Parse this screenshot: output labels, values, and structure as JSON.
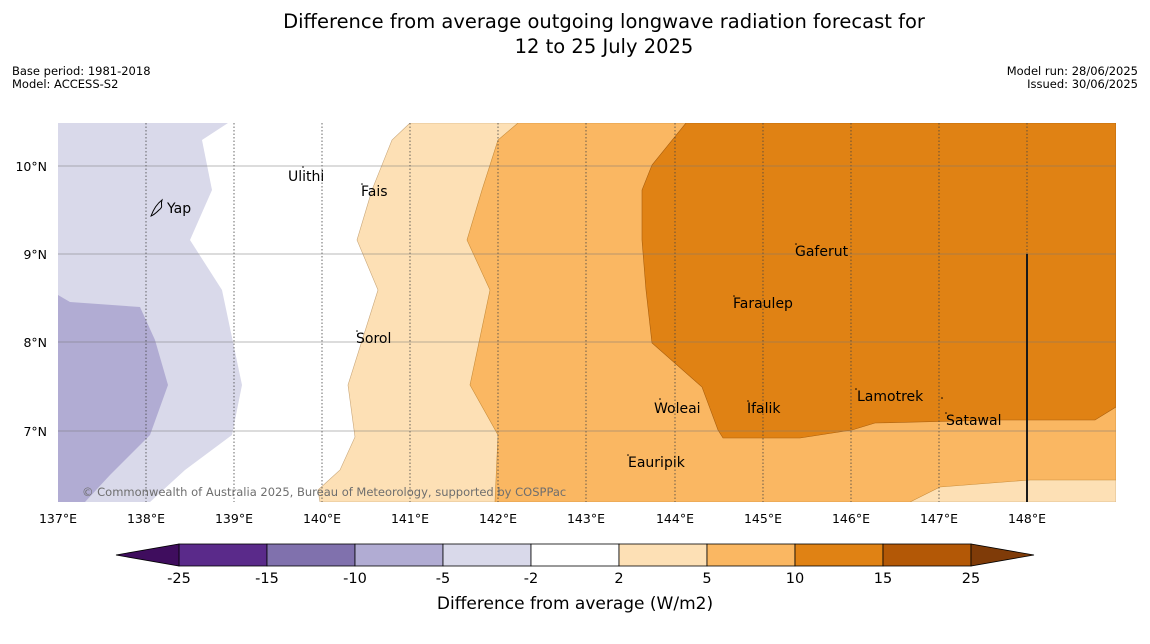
{
  "title_line1": "Difference from average outgoing longwave radiation forecast for",
  "title_line2": "12 to 25 July 2025",
  "base_period": "Base period: 1981-2018",
  "model": "Model: ACCESS-S2",
  "model_run": "Model run: 28/06/2025",
  "issued": "Issued: 30/06/2025",
  "copyright": "© Commonwealth of Australia 2025, Bureau of Meteorology, supported by COSPPac",
  "map": {
    "lon_ticks": [
      "137°E",
      "138°E",
      "139°E",
      "140°E",
      "141°E",
      "142°E",
      "143°E",
      "144°E",
      "145°E",
      "146°E",
      "147°E",
      "148°E"
    ],
    "lat_ticks": [
      "10°N",
      "9°N",
      "8°N",
      "7°N"
    ],
    "places": [
      {
        "name": "Ulithi"
      },
      {
        "name": "Fais"
      },
      {
        "name": "Yap"
      },
      {
        "name": "Sorol"
      },
      {
        "name": "Gaferut"
      },
      {
        "name": "Faraulep"
      },
      {
        "name": "Lamotrek"
      },
      {
        "name": "Satawal"
      },
      {
        "name": "Woleai"
      },
      {
        "name": "Ifalik"
      },
      {
        "name": "Eauripik"
      }
    ]
  },
  "colorbar": {
    "label": "Difference from average (W/m2)",
    "ticks": [
      "-25",
      "-15",
      "-10",
      "-5",
      "-2",
      "2",
      "5",
      "10",
      "15",
      "25"
    ],
    "colors": [
      "#3f0d5e",
      "#5a2a8a",
      "#8071ad",
      "#b1acd3",
      "#d9d9ea",
      "#ffffff",
      "#fde0b5",
      "#fab762",
      "#e08214",
      "#b35806",
      "#7f3b08"
    ]
  }
}
